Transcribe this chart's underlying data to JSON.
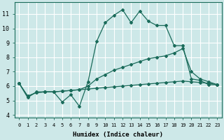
{
  "xlabel": "Humidex (Indice chaleur)",
  "background_color": "#cde8e8",
  "grid_color": "#b0d8d8",
  "line_color": "#1a6b5a",
  "x_ticks": [
    0,
    1,
    2,
    3,
    4,
    5,
    6,
    7,
    8,
    9,
    10,
    11,
    12,
    13,
    14,
    15,
    16,
    17,
    18,
    19,
    20,
    21,
    22,
    23
  ],
  "y_ticks": [
    4,
    5,
    6,
    7,
    8,
    9,
    10,
    11
  ],
  "xlim": [
    -0.5,
    23.5
  ],
  "ylim": [
    3.8,
    11.8
  ],
  "line1_y": [
    6.2,
    5.2,
    5.6,
    5.6,
    5.6,
    4.9,
    5.4,
    4.6,
    6.3,
    9.1,
    10.4,
    10.9,
    11.3,
    10.4,
    11.2,
    10.5,
    10.2,
    10.2,
    8.8,
    8.8,
    6.5,
    6.4,
    6.1,
    6.1
  ],
  "line2_y": [
    6.2,
    5.3,
    5.55,
    5.6,
    5.6,
    5.65,
    5.7,
    5.75,
    6.0,
    6.5,
    6.8,
    7.1,
    7.3,
    7.5,
    7.7,
    7.9,
    8.0,
    8.1,
    8.3,
    8.6,
    7.0,
    6.5,
    6.3,
    6.1
  ],
  "line3_y": [
    6.2,
    5.3,
    5.55,
    5.6,
    5.6,
    5.65,
    5.7,
    5.75,
    5.8,
    5.85,
    5.9,
    5.95,
    6.0,
    6.05,
    6.1,
    6.15,
    6.2,
    6.25,
    6.3,
    6.35,
    6.3,
    6.25,
    6.2,
    6.1
  ],
  "marker": "D",
  "markersize": 2.0,
  "linewidth": 0.9,
  "xlabel_fontsize": 6.5,
  "tick_fontsize_x": 5.0,
  "tick_fontsize_y": 6.0
}
